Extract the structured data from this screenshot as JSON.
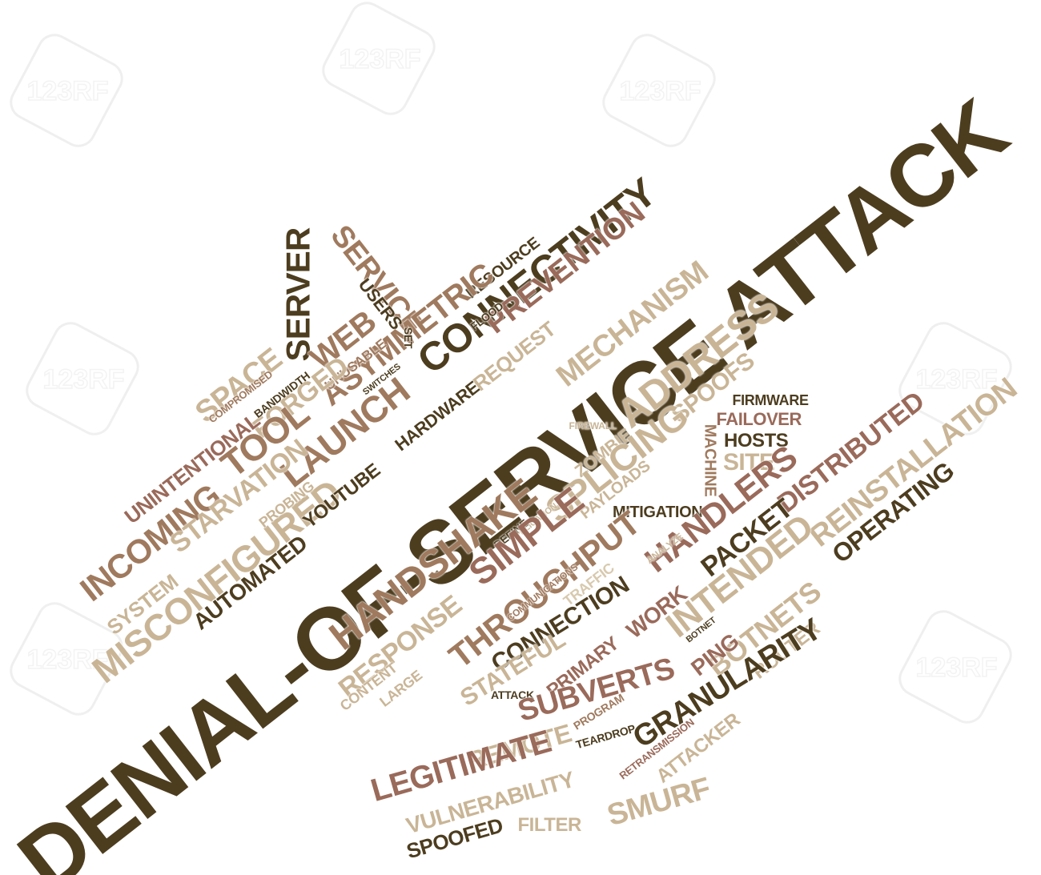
{
  "colors": {
    "dark": "#4d3d1f",
    "medium": "#a07a5e",
    "rose": "#9a6a5a",
    "tan": "#c9b596",
    "light": "#d8c9ae",
    "bg": "#ffffff"
  },
  "watermark": {
    "label": "123RF"
  },
  "words": [
    {
      "t": "DENIAL-OF-SERVICE ATTACK",
      "c": "dark"
    },
    {
      "t": "CONNECTIVITY",
      "c": "dark"
    },
    {
      "t": "PREVENTION",
      "c": "rose"
    },
    {
      "t": "MECHANISM",
      "c": "tan"
    },
    {
      "t": "ADDRESS",
      "c": "tan"
    },
    {
      "t": "SPOOFS",
      "c": "tan"
    },
    {
      "t": "SERVICE",
      "c": "medium"
    },
    {
      "t": "SERVER",
      "c": "dark"
    },
    {
      "t": "USERS",
      "c": "dark"
    },
    {
      "t": "RESOURCE",
      "c": "dark"
    },
    {
      "t": "FLOOD",
      "c": "dark"
    },
    {
      "t": "ASYMMETRIC",
      "c": "medium"
    },
    {
      "t": "WEB",
      "c": "medium"
    },
    {
      "t": "SPACE",
      "c": "tan"
    },
    {
      "t": "UNUSABLE",
      "c": "medium"
    },
    {
      "t": "SWITCHES",
      "c": "dark"
    },
    {
      "t": "SET",
      "c": "dark"
    },
    {
      "t": "REQUEST",
      "c": "tan"
    },
    {
      "t": "FORGED",
      "c": "tan"
    },
    {
      "t": "BANDWIDTH",
      "c": "dark"
    },
    {
      "t": "COMPROMISED",
      "c": "medium"
    },
    {
      "t": "TOOL",
      "c": "medium"
    },
    {
      "t": "LAUNCH",
      "c": "medium"
    },
    {
      "t": "HARDWARE",
      "c": "dark"
    },
    {
      "t": "UNINTENTIONAL",
      "c": "rose"
    },
    {
      "t": "INCOMING",
      "c": "medium"
    },
    {
      "t": "STARVATION",
      "c": "tan"
    },
    {
      "t": "SYSTEM",
      "c": "tan"
    },
    {
      "t": "MISCONFIGURED",
      "c": "tan"
    },
    {
      "t": "PROBING",
      "c": "tan"
    },
    {
      "t": "YOUTUBE",
      "c": "dark"
    },
    {
      "t": "AUTOMATED",
      "c": "dark"
    },
    {
      "t": "FIRMWARE",
      "c": "dark"
    },
    {
      "t": "FAILOVER",
      "c": "rose"
    },
    {
      "t": "HOSTS",
      "c": "dark"
    },
    {
      "t": "MACHINE",
      "c": "medium"
    },
    {
      "t": "SITE",
      "c": "tan"
    },
    {
      "t": "DISTRIBUTED",
      "c": "rose"
    },
    {
      "t": "REINSTALLATION",
      "c": "tan"
    },
    {
      "t": "OPERATING",
      "c": "dark"
    },
    {
      "t": "FIREWALL",
      "c": "tan"
    },
    {
      "t": "ZOMBIE",
      "c": "tan"
    },
    {
      "t": "SPLICING",
      "c": "tan"
    },
    {
      "t": "PAYLOADS",
      "c": "tan"
    },
    {
      "t": "MITIGATION",
      "c": "dark"
    },
    {
      "t": "APPLICATION",
      "c": "tan"
    },
    {
      "t": "DEFINE",
      "c": "dark"
    },
    {
      "t": "SIMPLE",
      "c": "rose"
    },
    {
      "t": "HANDSHAKE",
      "c": "medium"
    },
    {
      "t": "HANDLERS",
      "c": "rose"
    },
    {
      "t": "PACKET",
      "c": "dark"
    },
    {
      "t": "INTENDED",
      "c": "tan"
    },
    {
      "t": "ANALYZE",
      "c": "tan"
    },
    {
      "t": "THROUGHPUT",
      "c": "medium"
    },
    {
      "t": "TRAFFIC",
      "c": "light"
    },
    {
      "t": "COMMUNICATIONS",
      "c": "medium"
    },
    {
      "t": "RESPONSE",
      "c": "tan"
    },
    {
      "t": "CONTENT",
      "c": "tan"
    },
    {
      "t": "LARGE",
      "c": "tan"
    },
    {
      "t": "CONNECTION",
      "c": "dark"
    },
    {
      "t": "WORK",
      "c": "rose"
    },
    {
      "t": "STATEFUL",
      "c": "tan"
    },
    {
      "t": "BOTNETS",
      "c": "tan"
    },
    {
      "t": "BOTNET",
      "c": "dark"
    },
    {
      "t": "ROUTER",
      "c": "tan"
    },
    {
      "t": "PING",
      "c": "rose"
    },
    {
      "t": "PRIMARY",
      "c": "rose"
    },
    {
      "t": "ATTACK",
      "c": "dark"
    },
    {
      "t": "SUBVERTS",
      "c": "rose"
    },
    {
      "t": "GRANULARITY",
      "c": "dark"
    },
    {
      "t": "PROGRAM",
      "c": "medium"
    },
    {
      "t": "TEARDROP",
      "c": "dark"
    },
    {
      "t": "RETRANSMISSION",
      "c": "rose"
    },
    {
      "t": "ATTACKER",
      "c": "tan"
    },
    {
      "t": "REMOTE",
      "c": "tan"
    },
    {
      "t": "LEGITIMATE",
      "c": "rose"
    },
    {
      "t": "VULNERABILITY",
      "c": "tan"
    },
    {
      "t": "SMURF",
      "c": "tan"
    },
    {
      "t": "FILTER",
      "c": "tan"
    },
    {
      "t": "SPOOFED",
      "c": "dark"
    }
  ]
}
